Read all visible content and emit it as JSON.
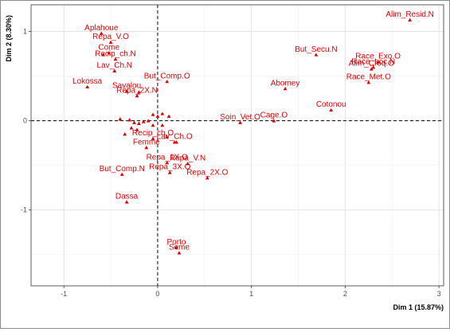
{
  "chart_data": {
    "type": "scatter",
    "title": "",
    "xlabel": "Dim 1 (15.87%)",
    "ylabel": "Dim 2 (8.30%)",
    "xlim": [
      -1.35,
      3.05
    ],
    "ylim": [
      -1.85,
      1.3
    ],
    "xticks": [
      -1,
      0,
      1,
      2,
      3
    ],
    "yticks": [
      -1,
      0,
      1
    ],
    "grid": true,
    "reference_lines": [
      0,
      0
    ],
    "series": [
      {
        "marker": "triangle",
        "color": "#dd0000",
        "points": [
          {
            "label": "Aplahoue",
            "x": -0.6,
            "y": 0.98
          },
          {
            "label": "Repa_V.O",
            "x": -0.5,
            "y": 0.88
          },
          {
            "label": "Come",
            "x": -0.52,
            "y": 0.76
          },
          {
            "label": "Recip_ch.N",
            "x": -0.45,
            "y": 0.69
          },
          {
            "label": "Lav_Ch.N",
            "x": -0.46,
            "y": 0.56
          },
          {
            "label": "But_Comp.O",
            "x": 0.1,
            "y": 0.44
          },
          {
            "label": "Savalou",
            "x": -0.33,
            "y": 0.33
          },
          {
            "label": "Lokossa",
            "x": -0.75,
            "y": 0.38
          },
          {
            "label": "Repa_2X.N",
            "x": -0.22,
            "y": 0.28
          },
          {
            "label": "Recip_ch.O",
            "x": -0.05,
            "y": -0.2
          },
          {
            "label": "Lav_Ch.O",
            "x": 0.18,
            "y": -0.24
          },
          {
            "label": "Femme",
            "x": -0.12,
            "y": -0.3
          },
          {
            "label": "Repa_1X.O",
            "x": 0.1,
            "y": -0.47
          },
          {
            "label": "Repa_V.N",
            "x": 0.32,
            "y": -0.48
          },
          {
            "label": "But_Comp.N",
            "x": -0.38,
            "y": -0.6
          },
          {
            "label": "Repa_3X.O",
            "x": 0.13,
            "y": -0.58
          },
          {
            "label": "Repa_2X.O",
            "x": 0.53,
            "y": -0.64
          },
          {
            "label": "Dassa",
            "x": -0.33,
            "y": -0.91
          },
          {
            "label": "Porto",
            "x": 0.2,
            "y": -1.42
          },
          {
            "label": "Seme",
            "x": 0.23,
            "y": -1.48
          },
          {
            "label": "But_Secu.N",
            "x": 1.69,
            "y": 0.74
          },
          {
            "label": "Abomey",
            "x": 1.36,
            "y": 0.36
          },
          {
            "label": "Cage.O",
            "x": 1.24,
            "y": 0.0
          },
          {
            "label": "Soin_Vet.O",
            "x": 0.88,
            "y": -0.02
          },
          {
            "label": "Alim_Resid.N",
            "x": 2.69,
            "y": 1.13
          },
          {
            "label": "Race_Exo.O",
            "x": 2.35,
            "y": 0.66
          },
          {
            "label": "Race_Loc.N",
            "x": 2.3,
            "y": 0.6
          },
          {
            "label": "Alim_Croq.O",
            "x": 2.28,
            "y": 0.58
          },
          {
            "label": "Race_Met.O",
            "x": 2.25,
            "y": 0.43
          },
          {
            "label": "Cotonou",
            "x": 1.85,
            "y": 0.12
          }
        ],
        "unlabeled_points": [
          {
            "x": -0.58,
            "y": 0.74
          },
          {
            "x": -0.2,
            "y": 0.32
          },
          {
            "x": -0.05,
            "y": 0.07
          },
          {
            "x": 0.05,
            "y": 0.08
          },
          {
            "x": 0.12,
            "y": 0.05
          },
          {
            "x": -0.4,
            "y": 0.02
          },
          {
            "x": -0.3,
            "y": 0.01
          },
          {
            "x": -0.25,
            "y": -0.02
          },
          {
            "x": -0.2,
            "y": -0.03
          },
          {
            "x": -0.15,
            "y": -0.01
          },
          {
            "x": -0.1,
            "y": 0.0
          },
          {
            "x": 0.0,
            "y": 0.05
          },
          {
            "x": -0.05,
            "y": -0.05
          },
          {
            "x": 0.05,
            "y": -0.05
          },
          {
            "x": -0.28,
            "y": -0.08
          },
          {
            "x": -0.22,
            "y": -0.1
          },
          {
            "x": 0.1,
            "y": -0.18
          },
          {
            "x": -0.35,
            "y": -0.15
          },
          {
            "x": 0.2,
            "y": -0.24
          }
        ]
      }
    ]
  }
}
